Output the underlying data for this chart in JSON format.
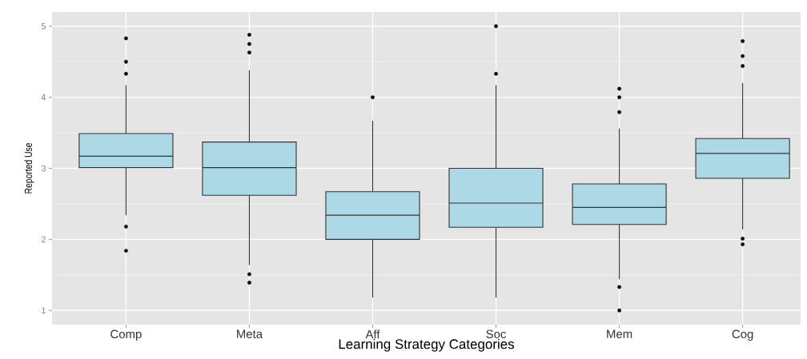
{
  "chart_data": {
    "type": "box",
    "xlabel": "Learning Strategy Categories",
    "ylabel": "Reported Use",
    "categories": [
      "Comp",
      "Meta",
      "Aff",
      "Soc",
      "Mem",
      "Cog"
    ],
    "series": [
      {
        "color": "#add8e6",
        "boxes": [
          {
            "low": 2.34,
            "q1": 3.01,
            "median": 3.17,
            "q3": 3.49,
            "high": 4.17,
            "outliers": [
              4.83,
              4.5,
              4.33,
              2.18,
              1.84
            ]
          },
          {
            "low": 1.64,
            "q1": 2.62,
            "median": 3.01,
            "q3": 3.37,
            "high": 4.38,
            "outliers": [
              4.88,
              4.75,
              4.63,
              1.51,
              1.39
            ]
          },
          {
            "low": 1.18,
            "q1": 2.0,
            "median": 2.34,
            "q3": 2.67,
            "high": 3.67,
            "outliers": [
              4.0
            ]
          },
          {
            "low": 1.18,
            "q1": 2.17,
            "median": 2.51,
            "q3": 3.0,
            "high": 4.17,
            "outliers": [
              5.0,
              4.33
            ]
          },
          {
            "low": 1.44,
            "q1": 2.21,
            "median": 2.45,
            "q3": 2.78,
            "high": 3.56,
            "outliers": [
              4.12,
              4.0,
              3.79,
              1.33,
              1.0
            ]
          },
          {
            "low": 2.14,
            "q1": 2.86,
            "median": 3.21,
            "q3": 3.42,
            "high": 4.2,
            "outliers": [
              4.79,
              4.58,
              4.44,
              2.01,
              1.93
            ]
          }
        ]
      }
    ],
    "ylim": [
      0.8,
      5.2
    ],
    "yticks": [
      1,
      2,
      3,
      4,
      5
    ],
    "grid": true
  }
}
